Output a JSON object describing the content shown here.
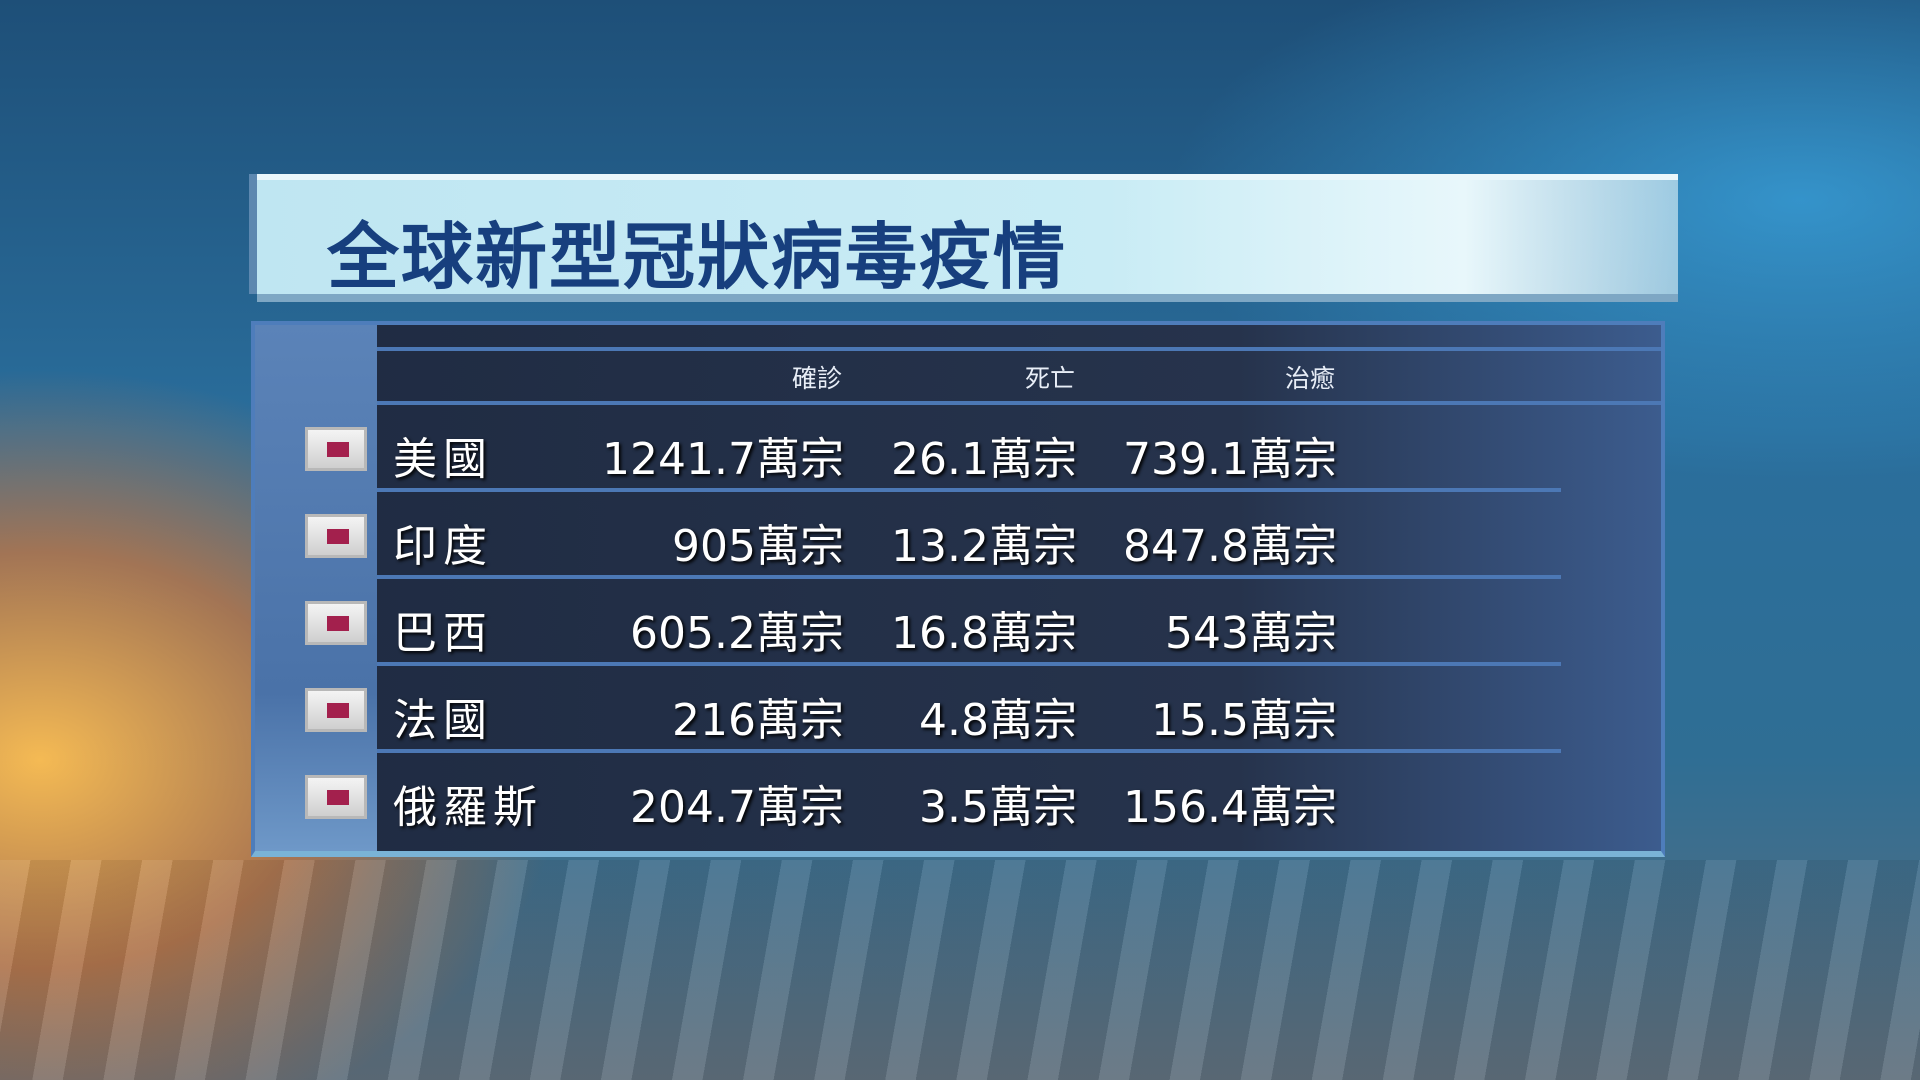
{
  "title": "全球新型冠狀病毒疫情",
  "headers": [
    "確診",
    "死亡",
    "治癒"
  ],
  "rows": [
    {
      "country": "美國",
      "confirmed": "1241.7萬宗",
      "deaths": "26.1萬宗",
      "recovered": "739.1萬宗"
    },
    {
      "country": "印度",
      "confirmed": "905萬宗",
      "deaths": "13.2萬宗",
      "recovered": "847.8萬宗"
    },
    {
      "country": "巴西",
      "confirmed": "605.2萬宗",
      "deaths": "16.8萬宗",
      "recovered": "543萬宗"
    },
    {
      "country": "法國",
      "confirmed": "216萬宗",
      "deaths": "4.8萬宗",
      "recovered": "15.5萬宗"
    },
    {
      "country": "俄羅斯",
      "confirmed": "204.7萬宗",
      "deaths": "3.5萬宗",
      "recovered": "156.4萬宗"
    }
  ],
  "colors": {
    "title_text": "#173f7e",
    "panel": "#1f2b42",
    "flag_mark": "#a3204d"
  }
}
